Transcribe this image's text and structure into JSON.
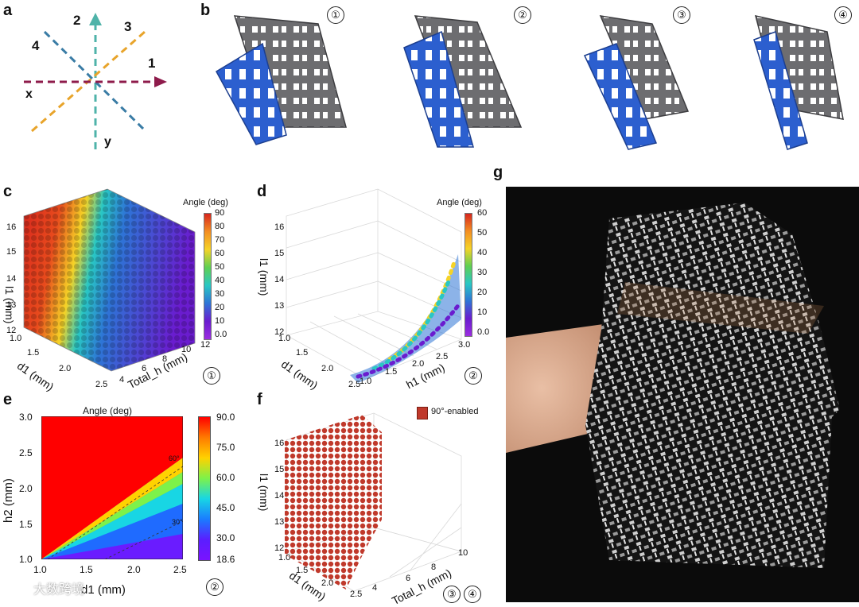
{
  "panel_labels": {
    "a": "a",
    "b": "b",
    "c": "c",
    "d": "d",
    "e": "e",
    "f": "f",
    "g": "g"
  },
  "panel_a": {
    "directions": [
      "1",
      "2",
      "3",
      "4"
    ],
    "axes": {
      "x": "x",
      "y": "y"
    },
    "colors": {
      "dir1": "#8e1b4b",
      "dir2": "#4fb3a9",
      "dir3": "#e8a42b",
      "dir4": "#3a7ca5"
    }
  },
  "panel_b": {
    "markers": [
      "①",
      "②",
      "③",
      "④"
    ],
    "colors": {
      "gray": "#6d6d70",
      "blue": "#2c5fcf"
    }
  },
  "panel_c": {
    "marker": "①",
    "colorbar_title": "Angle (deg)",
    "colorbar_ticks": [
      "90",
      "80",
      "70",
      "60",
      "50",
      "40",
      "30",
      "20",
      "10",
      "0.0"
    ],
    "axis_labels": {
      "z": "l1 (mm)",
      "d1": "d1 (mm)",
      "total_h": "Total_h (mm)"
    },
    "z_ticks": [
      "16",
      "15",
      "14",
      "13",
      "12"
    ],
    "d1_ticks": [
      "1.0",
      "1.5",
      "2.0",
      "2.5"
    ],
    "h_ticks": [
      "4",
      "6",
      "8",
      "10",
      "12"
    ]
  },
  "panel_d": {
    "marker": "②",
    "colorbar_title": "Angle (deg)",
    "colorbar_ticks": [
      "60",
      "50",
      "40",
      "30",
      "20",
      "10",
      "0.0"
    ],
    "axis_labels": {
      "z": "l1 (mm)",
      "d1": "d1 (mm)",
      "h1": "h1 (mm)"
    },
    "z_ticks": [
      "16",
      "15",
      "14",
      "13",
      "12"
    ],
    "d1_ticks": [
      "1.0",
      "1.5",
      "2.0",
      "2.5"
    ],
    "h1_ticks": [
      "1.0",
      "1.5",
      "2.0",
      "2.5",
      "3.0"
    ]
  },
  "panel_e": {
    "marker": "②",
    "title": "Angle (deg)",
    "xlabel": "d1 (mm)",
    "ylabel": "h2 (mm)",
    "x_ticks": [
      "1.0",
      "1.5",
      "2.0",
      "2.5"
    ],
    "y_ticks": [
      "3.0",
      "2.5",
      "2.0",
      "1.5",
      "1.0"
    ],
    "colorbar_ticks": [
      "90.0",
      "75.0",
      "60.0",
      "45.0",
      "30.0",
      "18.6"
    ],
    "contours": [
      "60°",
      "30°"
    ]
  },
  "panel_f": {
    "markers": [
      "③",
      "④"
    ],
    "legend": "90°-enabled",
    "axis_labels": {
      "z": "l1 (mm)",
      "d1": "d1 (mm)",
      "total_h": "Total_h (mm)"
    },
    "z_ticks": [
      "16",
      "15",
      "14",
      "13",
      "12"
    ],
    "d1_ticks": [
      "1.0",
      "1.5",
      "2.0",
      "2.5"
    ],
    "h_ticks": [
      "4",
      "6",
      "8",
      "10"
    ],
    "color": "#c0392b"
  },
  "panel_g": {},
  "watermark": "大数跨境"
}
